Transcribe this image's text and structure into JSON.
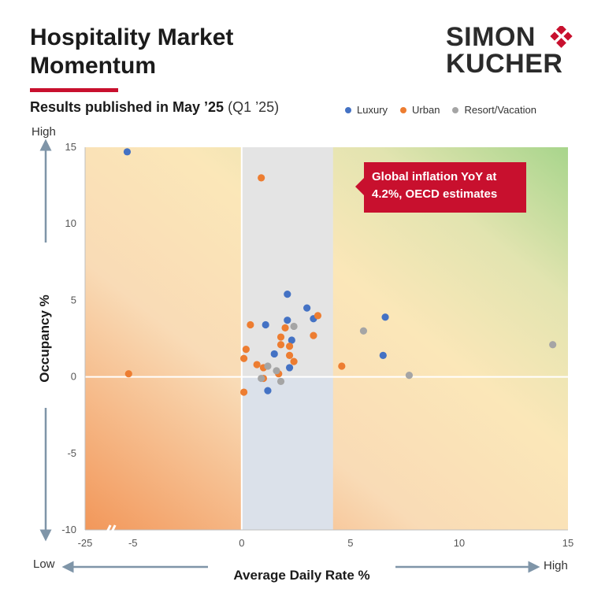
{
  "header": {
    "title": "Hospitality Market Momentum",
    "subtitle_bold": "Results published in May ’25",
    "subtitle_light": "(Q1 ’25)"
  },
  "logo": {
    "line1": "SIMON",
    "line2": "KUCHER",
    "color": "#c8102e"
  },
  "callout": {
    "text": "Global inflation YoY at 4.2%, OECD estimates"
  },
  "axis_words": {
    "y_high": "High",
    "x_low": "Low",
    "x_high": "High"
  },
  "colors": {
    "accent": "#c8102e",
    "Luxury": "#4472c4",
    "Urban": "#ed7d31",
    "Resort/Vacation": "#a5a5a5"
  },
  "chart_data": {
    "type": "scatter",
    "xlabel": "Average Daily Rate %",
    "ylabel": "Occupancy %",
    "xlim": [
      -25,
      15
    ],
    "ylim": [
      -10,
      15
    ],
    "xticks": [
      -25,
      -5,
      0,
      5,
      10,
      15
    ],
    "yticks": [
      -10,
      -5,
      0,
      5,
      10,
      15
    ],
    "x_axis_break": true,
    "highlight_band_x": [
      0,
      4.2
    ],
    "legend_position": "top-right",
    "series": [
      {
        "name": "Luxury",
        "points": [
          [
            -7.4,
            14.7
          ],
          [
            2.1,
            5.4
          ],
          [
            3.0,
            4.5
          ],
          [
            6.6,
            3.9
          ],
          [
            3.3,
            3.8
          ],
          [
            2.1,
            3.7
          ],
          [
            1.1,
            3.4
          ],
          [
            2.3,
            2.4
          ],
          [
            1.5,
            1.5
          ],
          [
            6.5,
            1.4
          ],
          [
            2.2,
            0.6
          ],
          [
            1.2,
            -0.9
          ]
        ]
      },
      {
        "name": "Urban",
        "points": [
          [
            -6.8,
            0.2
          ],
          [
            0.9,
            13.0
          ],
          [
            3.5,
            4.0
          ],
          [
            0.4,
            3.4
          ],
          [
            2.0,
            3.2
          ],
          [
            3.3,
            2.7
          ],
          [
            1.8,
            2.6
          ],
          [
            1.8,
            2.1
          ],
          [
            2.2,
            2.0
          ],
          [
            0.2,
            1.8
          ],
          [
            2.2,
            1.4
          ],
          [
            0.1,
            1.2
          ],
          [
            2.4,
            1.0
          ],
          [
            0.7,
            0.8
          ],
          [
            4.6,
            0.7
          ],
          [
            1.0,
            0.6
          ],
          [
            1.7,
            0.2
          ],
          [
            1.0,
            -0.1
          ],
          [
            0.1,
            -1.0
          ]
        ]
      },
      {
        "name": "Resort/Vacation",
        "points": [
          [
            2.4,
            3.3
          ],
          [
            5.6,
            3.0
          ],
          [
            14.3,
            2.1
          ],
          [
            1.2,
            0.7
          ],
          [
            1.6,
            0.4
          ],
          [
            7.7,
            0.1
          ],
          [
            0.9,
            -0.1
          ],
          [
            1.8,
            -0.3
          ]
        ]
      }
    ]
  }
}
